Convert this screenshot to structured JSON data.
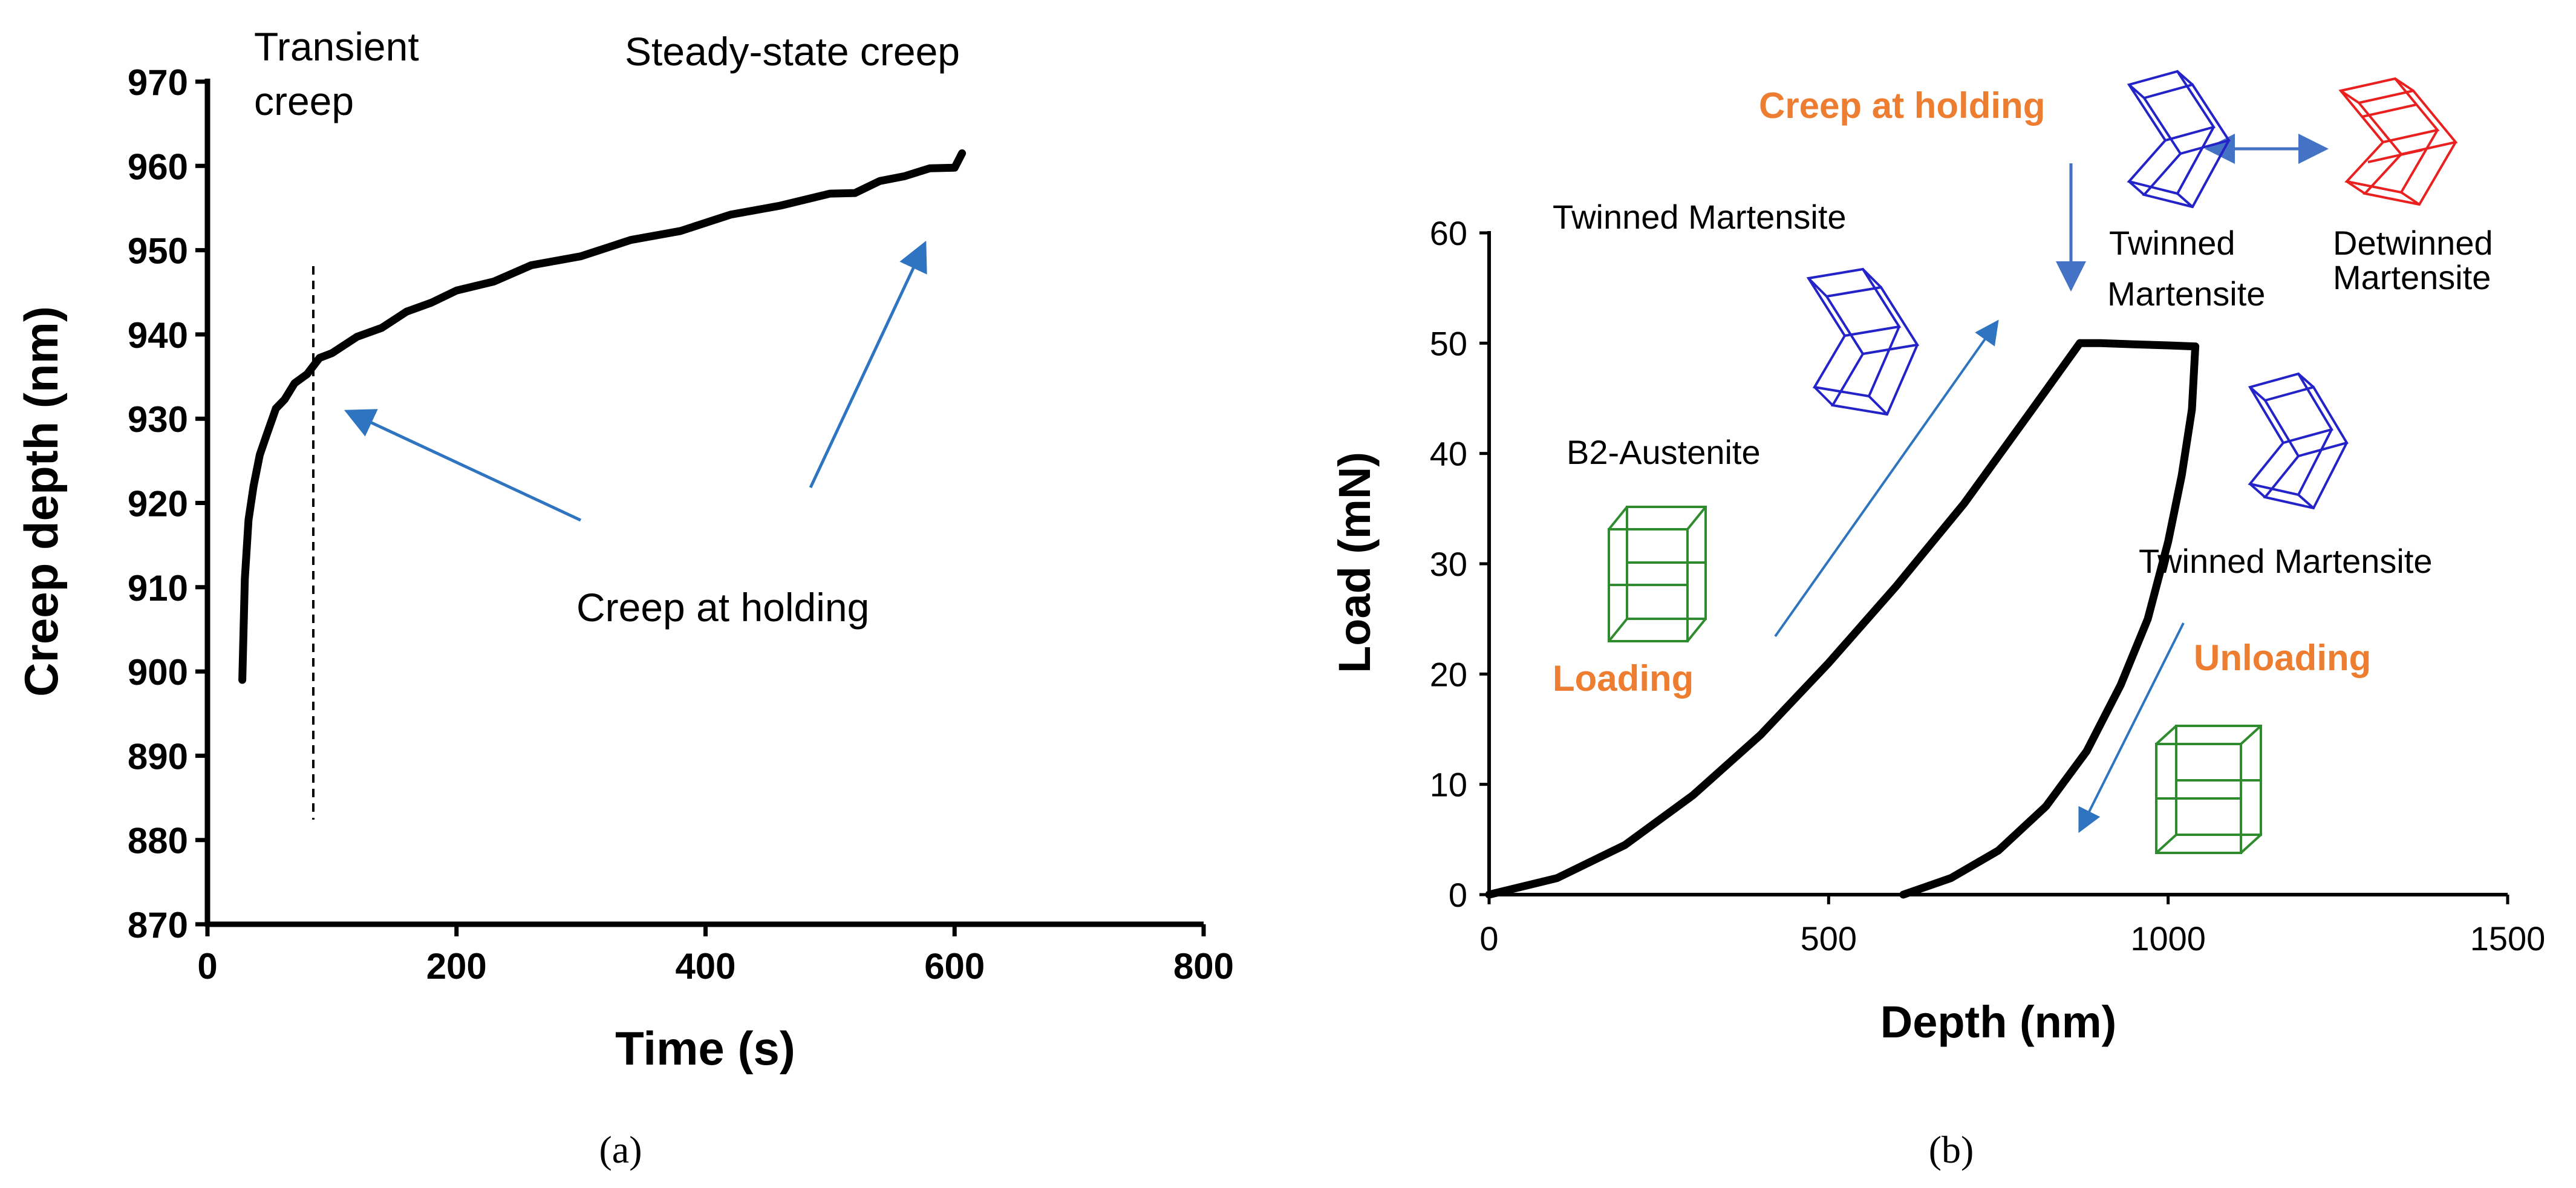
{
  "chart_data": [
    {
      "type": "line",
      "panel_caption": "(a)",
      "xlabel": "Time (s)",
      "ylabel": "Creep depth (nm)",
      "xlim": [
        0,
        800
      ],
      "ylim": [
        870,
        970
      ],
      "x_ticks": [
        0,
        200,
        400,
        600,
        800
      ],
      "y_ticks": [
        870,
        880,
        890,
        900,
        910,
        920,
        930,
        940,
        950,
        960,
        970
      ],
      "series": [
        {
          "name": "Creep depth",
          "x": [
            28,
            30,
            33,
            37,
            42,
            48,
            55,
            62,
            70,
            80,
            90,
            100,
            120,
            140,
            160,
            180,
            200,
            230,
            260,
            300,
            340,
            380,
            420,
            460,
            500,
            520,
            540,
            560,
            580,
            600,
            606
          ],
          "y": [
            899,
            911,
            918,
            922,
            925.5,
            928.5,
            931,
            932.5,
            934,
            935.5,
            937,
            938,
            939.5,
            941,
            942.5,
            944,
            945,
            946.5,
            948,
            949.5,
            951,
            952.5,
            954,
            955.5,
            956.5,
            957,
            958,
            959,
            959.5,
            960,
            961.5
          ]
        }
      ],
      "divider_x": 85,
      "annotations": {
        "transient_line1": "Transient",
        "transient_line2": "creep",
        "steady_state": "Steady-state creep",
        "holding": "Creep at holding"
      }
    },
    {
      "type": "line",
      "panel_caption": "(b)",
      "xlabel": "Depth (nm)",
      "ylabel": "Load (mN)",
      "xlim": [
        0,
        1500
      ],
      "ylim": [
        0,
        60
      ],
      "x_ticks": [
        0,
        500,
        1000,
        1500
      ],
      "y_ticks": [
        0,
        10,
        20,
        30,
        40,
        50,
        60
      ],
      "series": [
        {
          "name": "Loading",
          "x": [
            0,
            100,
            200,
            300,
            400,
            500,
            600,
            700,
            800,
            870
          ],
          "y": [
            0,
            1.5,
            4.5,
            9.0,
            14.5,
            21.0,
            28.0,
            35.5,
            44.0,
            50.0
          ]
        },
        {
          "name": "Holding",
          "x": [
            870,
            900,
            950,
            1000,
            1040
          ],
          "y": [
            50.0,
            50.0,
            49.9,
            49.8,
            49.7
          ]
        },
        {
          "name": "Unloading",
          "x": [
            1040,
            1035,
            1020,
            1000,
            970,
            930,
            880,
            820,
            750,
            680,
            610
          ],
          "y": [
            49.7,
            44,
            38,
            32,
            25,
            19,
            13,
            8,
            4,
            1.5,
            0
          ]
        }
      ],
      "annotations": {
        "twinned_left": "Twinned Martensite",
        "b2": "B2-Austenite",
        "loading": "Loading",
        "creep_holding": "Creep at holding",
        "twinned_top_line1": "Twinned",
        "twinned_top_line2": "Martensite",
        "detwinned_line1": "Detwinned",
        "detwinned_line2": "Martensite",
        "twinned_right": "Twinned Martensite",
        "unloading": "Unloading"
      }
    }
  ],
  "colors": {
    "curve": "#000000",
    "arrow": "#2e74c0",
    "orange": "#ed7d31",
    "green_cell": "#2e8b2e",
    "blue_cell": "#2323c8",
    "red_cell": "#e82020"
  }
}
